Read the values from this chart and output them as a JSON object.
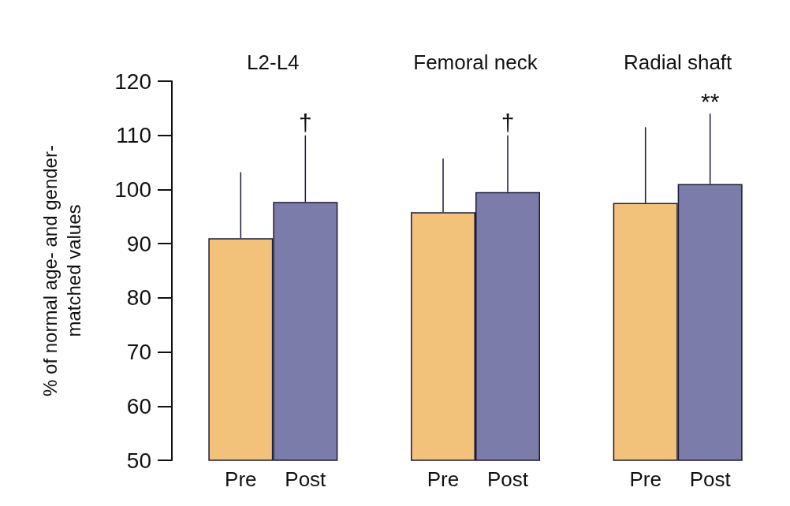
{
  "chart_data": {
    "type": "bar",
    "ylabel": "% of normal age- and gender-\nmatched values",
    "categories": [
      "L2-L4",
      "Femoral neck",
      "Radial shaft"
    ],
    "series": [
      {
        "name": "Pre",
        "color": "#f2c27a",
        "values": [
          91,
          95.8,
          97.5
        ],
        "errors": [
          [
            91,
            103.2
          ],
          [
            95.8,
            105.7
          ],
          [
            97.5,
            111.5
          ]
        ]
      },
      {
        "name": "Post",
        "color": "#7c7caa",
        "values": [
          97.7,
          99.5,
          101
        ],
        "errors": [
          [
            97.7,
            110
          ],
          [
            99.5,
            110
          ],
          [
            101,
            114
          ]
        ]
      }
    ],
    "annotations": [
      "†",
      "†",
      "**"
    ],
    "ylim": [
      50,
      120
    ],
    "yticks": [
      50,
      60,
      70,
      80,
      90,
      100,
      110,
      120
    ],
    "grid": false,
    "legend": false
  }
}
